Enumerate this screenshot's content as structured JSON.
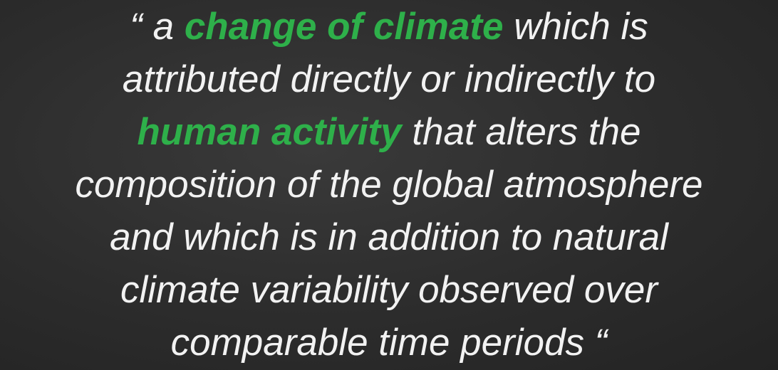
{
  "quote": {
    "lines": [
      {
        "segments": [
          {
            "text": "“ a "
          },
          {
            "text": "change of climate",
            "color": "#2eb04a",
            "bold": true
          },
          {
            "text": " which is"
          }
        ]
      },
      {
        "segments": [
          {
            "text": "attributed directly or indirectly to"
          }
        ]
      },
      {
        "segments": [
          {
            "text": "human activity",
            "color": "#2eb04a",
            "bold": true
          },
          {
            "text": " that alters the"
          }
        ]
      },
      {
        "segments": [
          {
            "text": "composition of the global atmosphere"
          }
        ]
      },
      {
        "segments": [
          {
            "text": "and which is in addition to natural"
          }
        ]
      },
      {
        "segments": [
          {
            "text": "climate variability observed over"
          }
        ]
      },
      {
        "segments": [
          {
            "text": "comparable time periods “"
          }
        ]
      }
    ]
  }
}
